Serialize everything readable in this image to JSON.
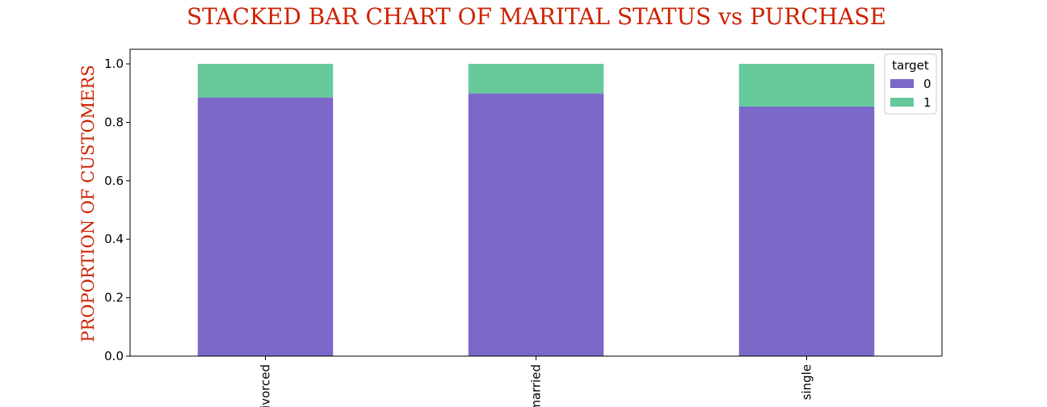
{
  "chart_data": {
    "type": "bar",
    "stacked": true,
    "title": "STACKED BAR CHART OF MARITAL STATUS vs PURCHASE",
    "xlabel": "",
    "ylabel": "PROPORTION OF CUSTOMERS",
    "categories": [
      "divorced",
      "married",
      "single"
    ],
    "series": [
      {
        "name": "0",
        "values": [
          0.885,
          0.899,
          0.854
        ],
        "color": "#7b68c9"
      },
      {
        "name": "1",
        "values": [
          0.115,
          0.101,
          0.146
        ],
        "color": "#66c99b"
      }
    ],
    "ylim": [
      0,
      1.05
    ],
    "yticks": [
      "0.0",
      "0.2",
      "0.4",
      "0.6",
      "0.8",
      "1.0"
    ],
    "ytick_values": [
      0,
      0.2,
      0.4,
      0.6,
      0.8,
      1.0
    ],
    "legend": {
      "title": "target",
      "position": "top-right"
    },
    "grid": false,
    "title_color": "#cc2200",
    "ylabel_color": "#cc2200"
  }
}
